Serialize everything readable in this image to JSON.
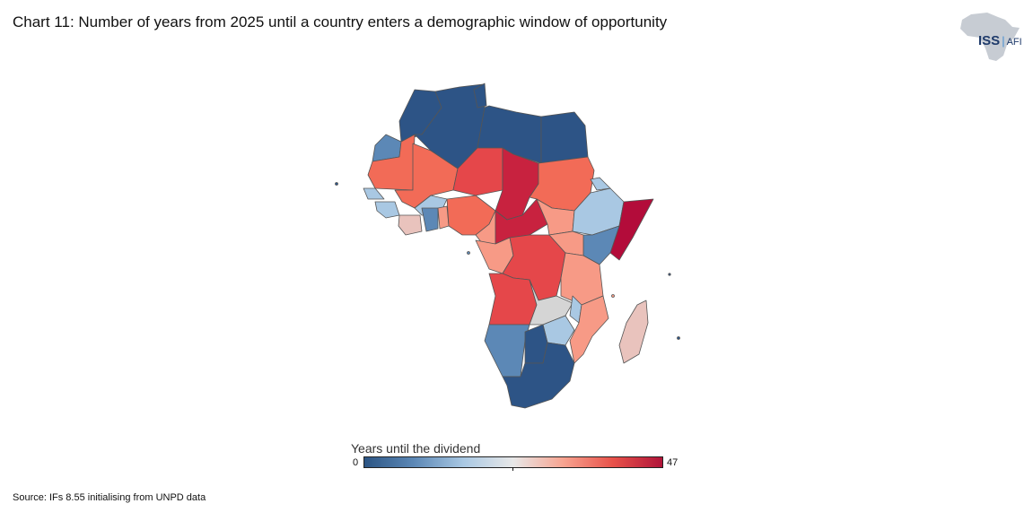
{
  "title": "Chart 11: Number of years from 2025 until a country enters a demographic window of opportunity",
  "logo": {
    "iss": "ISS",
    "afi": "AFI"
  },
  "legend": {
    "title": "Years until the dividend",
    "min_label": "0",
    "max_label": "47",
    "scale_colors": [
      "#2c5584",
      "#5c88b6",
      "#a9c8e3",
      "#e8e8e8",
      "#f7a491",
      "#e8524a",
      "#b01439"
    ]
  },
  "source": "Source: IFs 8.55 initialising from UNPD data",
  "colors": {
    "border": "#555555",
    "no_data": "#d5d5d5",
    "bin_0": "#2d5486",
    "bin_1": "#5c88b6",
    "bin_2": "#a9c8e3",
    "bin_3": "#e9c3bd",
    "bin_4": "#f79a86",
    "bin_5": "#f26b57",
    "bin_6": "#e5474a",
    "bin_7": "#c8223f",
    "bin_8": "#b30c3a"
  }
}
